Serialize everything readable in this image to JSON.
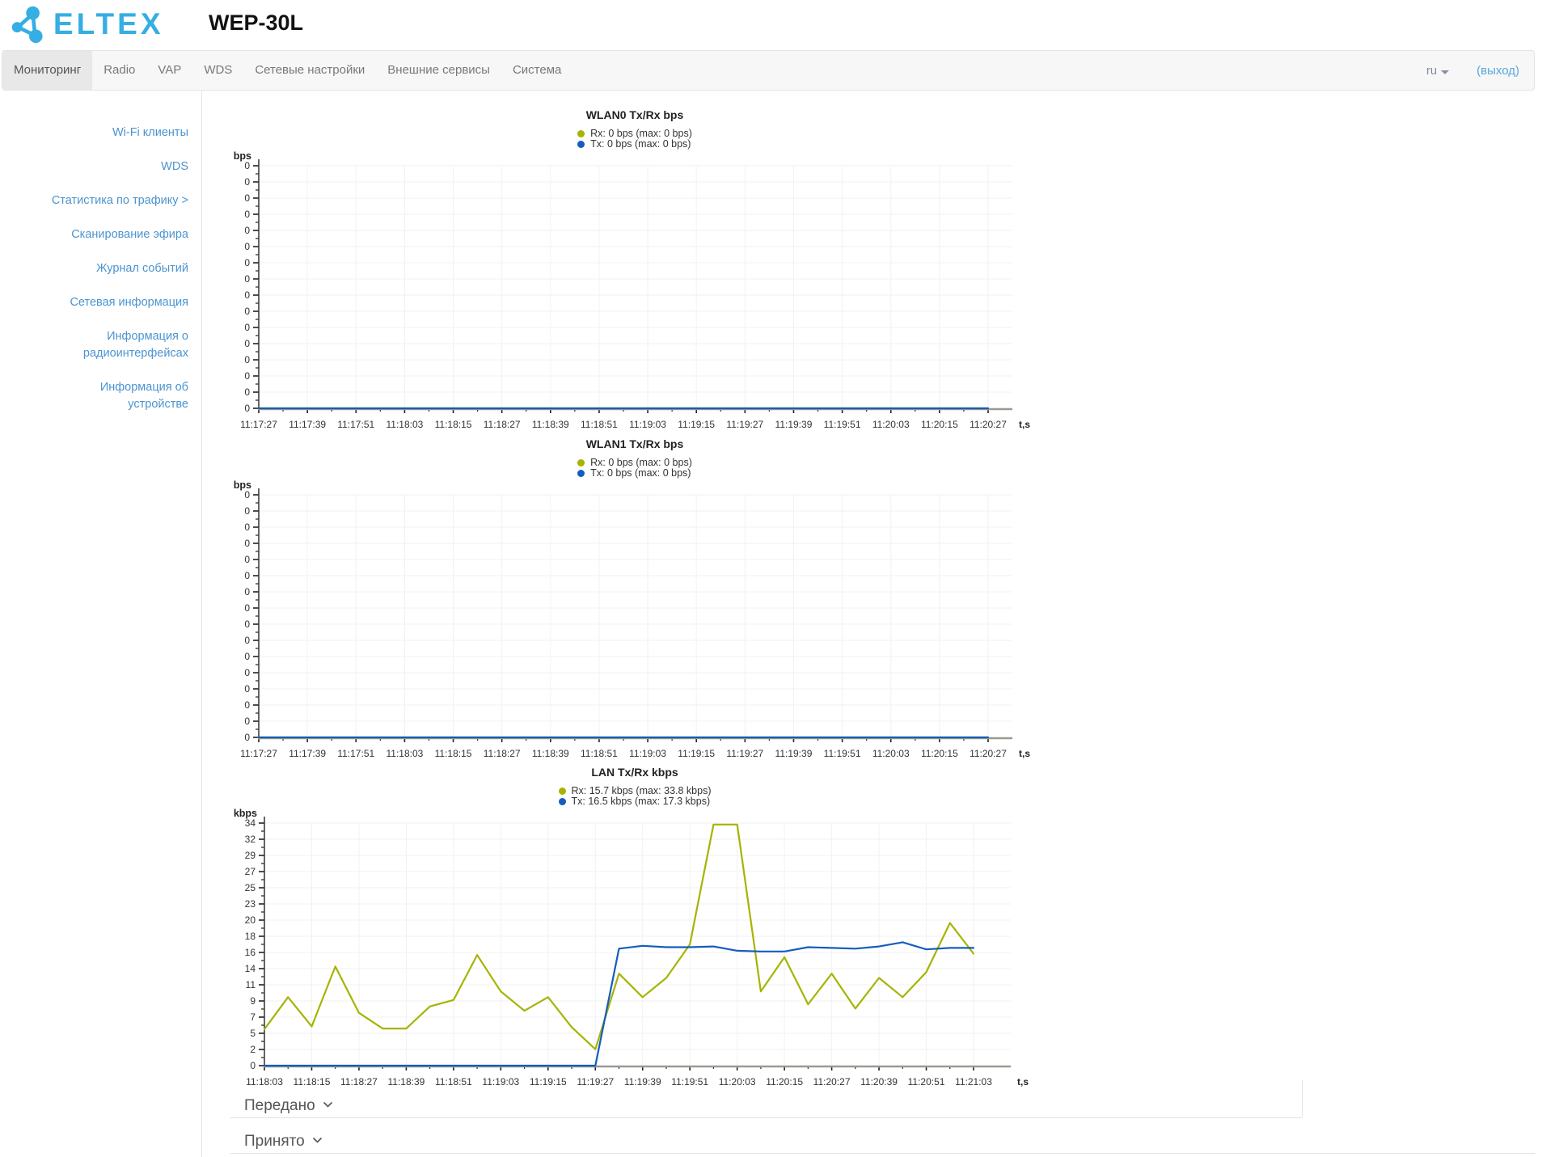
{
  "header": {
    "logo_text": "ELTEX",
    "device_title": "WEP-30L"
  },
  "nav": {
    "tabs": [
      {
        "label": "Мониторинг",
        "active": true
      },
      {
        "label": "Radio",
        "active": false
      },
      {
        "label": "VAP",
        "active": false
      },
      {
        "label": "WDS",
        "active": false
      },
      {
        "label": "Сетевые настройки",
        "active": false
      },
      {
        "label": "Внешние сервисы",
        "active": false
      },
      {
        "label": "Система",
        "active": false
      }
    ],
    "language": "ru",
    "logout_label": "(выход)"
  },
  "sidebar": {
    "items": [
      "Wi-Fi клиенты",
      "WDS",
      "Статистика по трафику >",
      "Сканирование эфира",
      "Журнал событий",
      "Сетевая информация",
      "Информация о радиоинтерфейсах",
      "Информация об устройстве"
    ]
  },
  "colors": {
    "rx": "#a6b400",
    "tx": "#155cbe",
    "y_axis": "#333333",
    "x_axis": "#9a9a94",
    "grid": "#f2f2f2",
    "link": "#4b94cf",
    "logo_blue": "#35aee3"
  },
  "chart_data": [
    {
      "type": "line",
      "title": "WLAN0 Tx/Rx bps",
      "ylabel": "bps",
      "xlabel": "t,s",
      "ylim": [
        0,
        0
      ],
      "grid": true,
      "legend_position": "top",
      "sample_interval_s": 6,
      "y_tick_labels": [
        "0",
        "0",
        "0",
        "0",
        "0",
        "0",
        "0",
        "0",
        "0",
        "0",
        "0",
        "0",
        "0",
        "0",
        "0",
        "0"
      ],
      "x_ticks": [
        "11:17:27",
        "11:17:39",
        "11:17:51",
        "11:18:03",
        "11:18:15",
        "11:18:27",
        "11:18:39",
        "11:18:51",
        "11:19:03",
        "11:19:15",
        "11:19:27",
        "11:19:39",
        "11:19:51",
        "11:20:03",
        "11:20:15",
        "11:20:27"
      ],
      "legend": [
        {
          "name": "Rx",
          "text": "Rx: 0 bps (max: 0 bps)",
          "color": "#a6b400"
        },
        {
          "name": "Tx",
          "text": "Tx: 0 bps (max: 0 bps)",
          "color": "#155cbe"
        }
      ],
      "series": [
        {
          "name": "Rx",
          "values": [
            0,
            0,
            0,
            0,
            0,
            0,
            0,
            0,
            0,
            0,
            0,
            0,
            0,
            0,
            0,
            0,
            0,
            0,
            0,
            0,
            0,
            0,
            0,
            0,
            0,
            0,
            0,
            0,
            0,
            0,
            0
          ]
        },
        {
          "name": "Tx",
          "values": [
            0,
            0,
            0,
            0,
            0,
            0,
            0,
            0,
            0,
            0,
            0,
            0,
            0,
            0,
            0,
            0,
            0,
            0,
            0,
            0,
            0,
            0,
            0,
            0,
            0,
            0,
            0,
            0,
            0,
            0,
            0
          ]
        }
      ]
    },
    {
      "type": "line",
      "title": "WLAN1 Tx/Rx bps",
      "ylabel": "bps",
      "xlabel": "t,s",
      "ylim": [
        0,
        0
      ],
      "grid": true,
      "legend_position": "top",
      "sample_interval_s": 6,
      "y_tick_labels": [
        "0",
        "0",
        "0",
        "0",
        "0",
        "0",
        "0",
        "0",
        "0",
        "0",
        "0",
        "0",
        "0",
        "0",
        "0",
        "0"
      ],
      "x_ticks": [
        "11:17:27",
        "11:17:39",
        "11:17:51",
        "11:18:03",
        "11:18:15",
        "11:18:27",
        "11:18:39",
        "11:18:51",
        "11:19:03",
        "11:19:15",
        "11:19:27",
        "11:19:39",
        "11:19:51",
        "11:20:03",
        "11:20:15",
        "11:20:27"
      ],
      "legend": [
        {
          "name": "Rx",
          "text": "Rx: 0 bps (max: 0 bps)",
          "color": "#a6b400"
        },
        {
          "name": "Tx",
          "text": "Tx: 0 bps (max: 0 bps)",
          "color": "#155cbe"
        }
      ],
      "series": [
        {
          "name": "Rx",
          "values": [
            0,
            0,
            0,
            0,
            0,
            0,
            0,
            0,
            0,
            0,
            0,
            0,
            0,
            0,
            0,
            0,
            0,
            0,
            0,
            0,
            0,
            0,
            0,
            0,
            0,
            0,
            0,
            0,
            0,
            0,
            0
          ]
        },
        {
          "name": "Tx",
          "values": [
            0,
            0,
            0,
            0,
            0,
            0,
            0,
            0,
            0,
            0,
            0,
            0,
            0,
            0,
            0,
            0,
            0,
            0,
            0,
            0,
            0,
            0,
            0,
            0,
            0,
            0,
            0,
            0,
            0,
            0,
            0
          ]
        }
      ]
    },
    {
      "type": "line",
      "title": "LAN Tx/Rx kbps",
      "ylabel": "kbps",
      "xlabel": "t,s",
      "ylim": [
        0,
        34
      ],
      "grid": true,
      "legend_position": "top",
      "sample_interval_s": 6,
      "y_tick_labels": [
        "0",
        "2",
        "5",
        "7",
        "9",
        "11",
        "14",
        "16",
        "18",
        "20",
        "23",
        "25",
        "27",
        "29",
        "32",
        "34"
      ],
      "x_ticks": [
        "11:18:03",
        "11:18:15",
        "11:18:27",
        "11:18:39",
        "11:18:51",
        "11:19:03",
        "11:19:15",
        "11:19:27",
        "11:19:39",
        "11:19:51",
        "11:20:03",
        "11:20:15",
        "11:20:27",
        "11:20:39",
        "11:20:51",
        "11:21:03"
      ],
      "legend": [
        {
          "name": "Rx",
          "text": "Rx: 15.7 kbps (max: 33.8 kbps)",
          "color": "#a6b400"
        },
        {
          "name": "Tx",
          "text": "Tx: 16.5 kbps (max: 17.3 kbps)",
          "color": "#155cbe"
        }
      ],
      "series": [
        {
          "name": "Rx",
          "values": [
            5.1,
            9.6,
            5.5,
            13.9,
            7.4,
            5.2,
            5.2,
            8.3,
            9.2,
            15.5,
            10.4,
            7.7,
            9.6,
            5.4,
            2.3,
            12.9,
            9.6,
            12.3,
            17.0,
            33.8,
            33.8,
            10.4,
            15.2,
            8.6,
            12.9,
            8.0,
            12.3,
            9.6,
            13.1,
            20.0,
            15.7
          ]
        },
        {
          "name": "Tx",
          "values": [
            0,
            0,
            0,
            0,
            0,
            0,
            0,
            0,
            0,
            0,
            0,
            0,
            0,
            0,
            0,
            16.4,
            16.8,
            16.6,
            16.6,
            16.7,
            16.1,
            16.0,
            16.0,
            16.6,
            16.5,
            16.4,
            16.7,
            17.3,
            16.3,
            16.5,
            16.5
          ]
        }
      ]
    }
  ],
  "accordions": [
    {
      "label": "Передано"
    },
    {
      "label": "Принято"
    }
  ]
}
